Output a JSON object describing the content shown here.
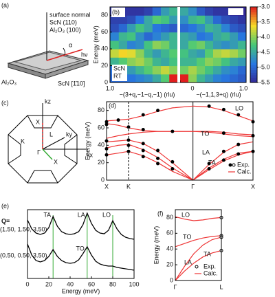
{
  "a": {
    "label": "(a)",
    "surface_normal": "surface normal",
    "scn_plane": "ScN (110)",
    "al2o3_plane": "Al₂O₃ (100)",
    "alpha": "α",
    "hv": "hν",
    "substrate": "Al₂O₃",
    "scn_dir": "ScN [1̄10]"
  },
  "b": {
    "label": "(b)",
    "ylabel": "Energy (meV)",
    "ylim": [
      0,
      90
    ],
    "yticks": [
      0,
      20,
      40,
      60,
      80
    ],
    "xlabel_left": "−(3+q,−1−q,−1) (rlu)",
    "xlabel_right": "−(−1,1,3+q) (rlu)",
    "xticks_left": [
      {
        "value": 1,
        "label": "1.0"
      }
    ],
    "xticks_right": [
      0,
      {
        "value": 1,
        "label": "1.0"
      }
    ],
    "sample": "ScN",
    "temp": "RT",
    "energy_bins": [
      0,
      10,
      20,
      30,
      40,
      50,
      60,
      70,
      80,
      90
    ],
    "q_bins": [
      0,
      0.125,
      0.25,
      0.375,
      0.5,
      0.625,
      0.75,
      0.875,
      1
    ],
    "grid_left": [
      [
        -3.0,
        -4.2,
        -4.5,
        -4.7,
        -4.8,
        -4.9,
        -5.0,
        -5.0
      ],
      [
        -4.0,
        -3.8,
        -4.0,
        -4.2,
        -4.4,
        -4.6,
        -4.8,
        -4.9
      ],
      [
        -4.3,
        -4.5,
        -4.4,
        -4.1,
        -3.9,
        -4.0,
        -4.2,
        -4.4
      ],
      [
        -4.2,
        -4.4,
        -4.6,
        -4.4,
        -4.0,
        -3.7,
        -3.6,
        -3.8
      ],
      [
        -4.4,
        -4.1,
        -4.0,
        -4.3,
        -4.7,
        -4.8,
        -4.5,
        -4.3
      ],
      [
        -4.4,
        -4.6,
        -4.8,
        -5.0,
        -4.7,
        -4.3,
        -4.4,
        -4.8
      ],
      [
        -5.1,
        -5.0,
        -4.9,
        -4.5,
        -4.3,
        -4.6,
        -5.0,
        -5.2
      ],
      [
        -4.6,
        -4.3,
        -4.2,
        -4.5,
        -4.9,
        -5.2,
        -5.3,
        -5.3
      ],
      [
        -4.4,
        -4.6,
        -5.0,
        -5.3,
        -5.4,
        -5.4,
        -5.4,
        -5.4
      ]
    ],
    "grid_right": [
      [
        -3.0,
        -4.0,
        -4.4,
        -4.6,
        -4.8,
        -4.9,
        -5.0,
        -5.1
      ],
      [
        -4.1,
        -3.9,
        -4.1,
        -4.3,
        -4.5,
        -4.7,
        -4.8,
        -5.0
      ],
      [
        -4.4,
        -4.4,
        -4.2,
        -4.0,
        -4.1,
        -4.3,
        -4.5,
        -4.6
      ],
      [
        -4.3,
        -4.5,
        -4.6,
        -4.2,
        -3.9,
        -3.8,
        -3.9,
        -4.1
      ],
      [
        -4.5,
        -4.2,
        -4.1,
        -4.4,
        -4.6,
        -4.7,
        -4.6,
        -4.4
      ],
      [
        -4.5,
        -4.6,
        -4.9,
        -4.8,
        -4.5,
        -4.4,
        -4.6,
        -4.9
      ],
      [
        -5.0,
        -4.9,
        -4.7,
        -4.4,
        -4.5,
        -4.8,
        -5.1,
        -5.2
      ],
      [
        -4.7,
        -4.4,
        -4.3,
        -4.6,
        -5.0,
        -5.2,
        -5.3,
        -5.4
      ],
      [
        -4.5,
        -4.7,
        -5.1,
        -5.3,
        -5.4,
        -5.4,
        -5.5,
        -5.5
      ]
    ],
    "clim": [
      -5.5,
      -3
    ],
    "cticks": [
      {
        "value": -3,
        "label": "-3.0"
      },
      -3.5,
      {
        "value": -4,
        "label": "-4.0"
      },
      -4.5,
      {
        "value": -5,
        "label": "-5.0"
      },
      -5.5
    ]
  },
  "c": {
    "label": "(c)",
    "kz": "kz",
    "ky": "ky",
    "kx": "kx",
    "x_top": "X",
    "l_point": "L",
    "k_point": "K",
    "gamma": "Γ",
    "x_bottom": "X"
  },
  "d": {
    "label": "(d)",
    "ylabel": "Energy (meV)",
    "ylim": [
      0,
      90
    ],
    "yticks": [
      0,
      20,
      40,
      60,
      80
    ],
    "xlim": [
      0,
      1
    ],
    "xticks": [
      {
        "value": 0,
        "label": "X"
      },
      {
        "value": 0.15,
        "label": "K"
      },
      {
        "value": 0.59,
        "label": "Γ"
      },
      {
        "value": 1,
        "label": "X"
      }
    ],
    "branches": [
      "LO",
      "TO",
      "LA",
      "TA"
    ],
    "legend_exp": "Exp.",
    "legend_calc": "Calc.",
    "calc_x": [
      0,
      0.08,
      0.15,
      0.25,
      0.35,
      0.45,
      0.59,
      0.7,
      0.8,
      0.9,
      1
    ],
    "calc": [
      [
        68,
        69,
        70,
        74,
        79,
        83,
        85,
        84,
        80,
        74,
        68
      ],
      [
        65,
        63,
        60,
        57,
        56,
        56,
        56,
        55,
        53,
        51,
        50
      ],
      [
        48,
        51,
        53,
        55,
        56,
        56,
        56,
        56,
        55,
        53,
        52
      ],
      [
        44,
        45,
        46,
        42,
        33,
        20,
        0,
        18,
        32,
        41,
        44
      ],
      [
        37,
        40,
        41,
        35,
        26,
        14,
        0,
        14,
        24,
        31,
        33
      ],
      [
        29,
        31,
        33,
        28,
        20,
        10,
        0,
        12,
        22,
        29,
        33
      ]
    ],
    "exp_x": [
      0,
      0.08,
      0.25,
      0.35,
      0.7,
      0.8,
      0.9,
      1,
      0,
      0.15,
      0.25,
      0.45,
      0.8,
      1,
      0,
      0.15,
      0.25,
      0.35,
      0.45,
      0.7,
      0.8,
      0.9,
      0,
      0.15,
      0.25,
      0.35,
      0.45,
      0.7,
      0.8,
      0.9,
      1,
      0,
      0.15,
      0.25,
      0.35
    ],
    "exp_y": [
      67,
      69,
      75,
      80,
      85,
      81,
      75,
      67,
      64,
      61,
      58,
      56,
      54,
      51,
      45,
      46,
      42,
      34,
      21,
      19,
      33,
      41,
      36,
      40,
      34,
      25,
      13,
      13,
      23,
      30,
      33,
      29,
      33,
      27,
      19
    ]
  },
  "e": {
    "label": "(e)",
    "q_label": "Q=",
    "q1": "(1.50, 1.50, 3.50)",
    "q2": "(0.50, 0.50, 3.50)",
    "xlabel": "Energy (meV)",
    "xlim": [
      0,
      100
    ],
    "xticks": [
      0,
      20,
      40,
      60,
      80,
      100
    ],
    "ylim": [
      0,
      10
    ],
    "peaks_top": [
      "TA",
      "LA",
      "LO"
    ],
    "peak_bottom": "TO",
    "peak_positions": [
      24,
      56,
      80
    ],
    "energy": [
      0,
      4,
      8,
      12,
      16,
      20,
      24,
      28,
      32,
      36,
      40,
      44,
      48,
      52,
      56,
      60,
      64,
      68,
      72,
      76,
      80,
      84,
      88,
      92,
      96,
      100
    ],
    "spectrum_top": [
      8.5,
      7.2,
      6.6,
      6.4,
      6.6,
      7.4,
      9.0,
      7.6,
      6.8,
      6.5,
      6.4,
      6.5,
      6.8,
      7.8,
      9.5,
      8.0,
      7.0,
      6.6,
      6.5,
      7.0,
      8.4,
      7.2,
      6.4,
      6.0,
      5.8,
      5.7
    ],
    "spectrum_bottom": [
      5.0,
      3.4,
      2.6,
      2.4,
      2.6,
      3.2,
      4.2,
      3.2,
      2.6,
      2.3,
      2.2,
      2.3,
      2.7,
      3.6,
      4.6,
      3.4,
      2.5,
      2.1,
      1.9,
      1.8,
      1.8,
      1.6,
      1.5,
      1.4,
      1.3,
      1.2
    ]
  },
  "f": {
    "label": "(f)",
    "ylabel": "Energy (meV)",
    "ylim": [
      0,
      90
    ],
    "yticks": [
      0,
      20,
      40,
      60,
      80
    ],
    "xlim": [
      0,
      1
    ],
    "xticks": [
      {
        "value": 0,
        "label": "Γ"
      },
      {
        "value": 1,
        "label": "L"
      }
    ],
    "branches": [
      "LO",
      "TO",
      "LA",
      "TA"
    ],
    "legend_exp": "Exp.",
    "legend_calc": "Calc.",
    "calc_x": [
      0,
      0.2,
      0.4,
      0.6,
      0.8,
      1
    ],
    "calc": [
      [
        81,
        78,
        76,
        77,
        79,
        80
      ],
      [
        43,
        47,
        51,
        54,
        56,
        57
      ],
      [
        0,
        18,
        34,
        45,
        52,
        55
      ],
      [
        0,
        12,
        22,
        30,
        35,
        38
      ]
    ],
    "exp_x": [
      1,
      1,
      1,
      1
    ],
    "exp_y": [
      80,
      57,
      55,
      38
    ]
  }
}
